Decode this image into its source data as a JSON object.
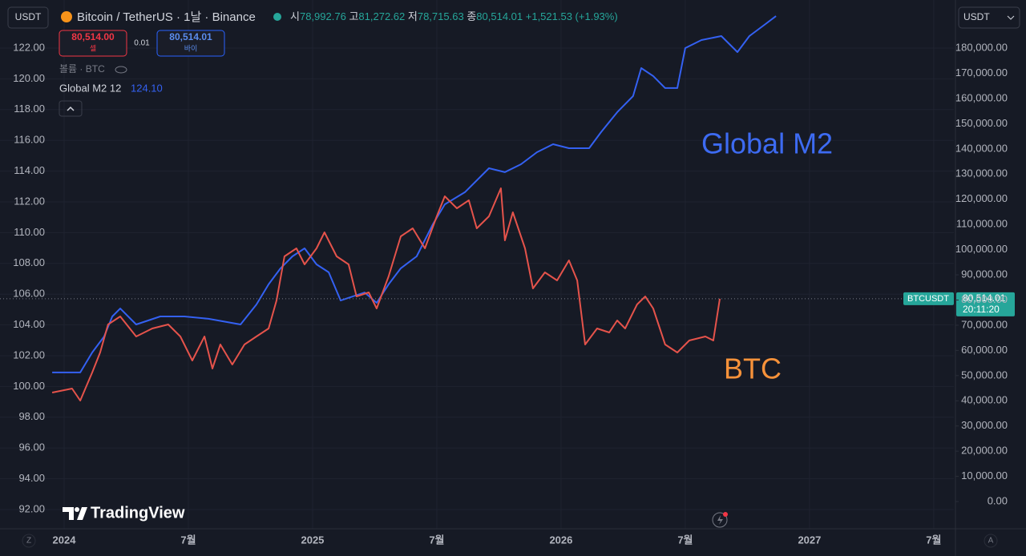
{
  "header": {
    "symbol_currency": "USDT",
    "title": "Bitcoin / TetherUS · 1날 · Binance",
    "ohlc": [
      {
        "label": "시",
        "value": "78,992.76"
      },
      {
        "label": "고",
        "value": "81,272.62"
      },
      {
        "label": "저",
        "value": "78,715.63"
      },
      {
        "label": "종",
        "value": "80,514.01"
      }
    ],
    "change": "+1,521.53 (+1.93%)",
    "sell_price": "80,514.00",
    "sell_label": "셀",
    "spread": "0.01",
    "buy_price": "80,514.01",
    "buy_label": "바이",
    "volume": "볼륨 · BTC",
    "indicator_name": "Global M2 12",
    "indicator_value": "124.10",
    "scale_currency": "USDT",
    "price_tag_symbol": "BTCUSDT",
    "price_tag_price": "80,514.01",
    "price_tag_time": "20:11:20",
    "brand": "TradingView",
    "scale_mode_left": "Z",
    "scale_mode_right": "A"
  },
  "chart_data": {
    "type": "line",
    "grid": true,
    "xlim": [
      2023.742,
      2027.581
    ],
    "xticks": [
      2024,
      {
        "value": 2024.5,
        "label": "7월"
      },
      2025,
      {
        "value": 2025.5,
        "label": "7월"
      },
      2026,
      {
        "value": 2026.5,
        "label": "7월"
      },
      2027,
      {
        "value": 2027.5,
        "label": "7월"
      }
    ],
    "ylim": [
      90.75,
      125.125
    ],
    "yticks": [
      {
        "value": 92,
        "label": "92.00"
      },
      {
        "value": 94,
        "label": "94.00"
      },
      {
        "value": 96,
        "label": "96.00"
      },
      {
        "value": 98,
        "label": "98.00"
      },
      {
        "value": 100,
        "label": "100.00"
      },
      {
        "value": 102,
        "label": "102.00"
      },
      {
        "value": 104,
        "label": "104.00"
      },
      {
        "value": 106,
        "label": "106.00"
      },
      {
        "value": 108,
        "label": "108.00"
      },
      {
        "value": 110,
        "label": "110.00"
      },
      {
        "value": 112,
        "label": "112.00"
      },
      {
        "value": 114,
        "label": "114.00"
      },
      {
        "value": 116,
        "label": "116.00"
      },
      {
        "value": 118,
        "label": "118.00"
      },
      {
        "value": 120,
        "label": "120.00"
      },
      {
        "value": 122,
        "label": "122.00"
      }
    ],
    "y2lim": [
      -10800,
      199100
    ],
    "y2ticks": [
      {
        "value": 0,
        "label": "0.00"
      },
      {
        "value": 10000,
        "label": "10,000.00"
      },
      {
        "value": 20000,
        "label": "20,000.00"
      },
      {
        "value": 30000,
        "label": "30,000.00"
      },
      {
        "value": 40000,
        "label": "40,000.00"
      },
      {
        "value": 50000,
        "label": "50,000.00"
      },
      {
        "value": 60000,
        "label": "60,000.00"
      },
      {
        "value": 70000,
        "label": "70,000.00"
      },
      {
        "value": 80000,
        "label": "80,000.00"
      },
      {
        "value": 90000,
        "label": "90,000.00"
      },
      {
        "value": 100000,
        "label": "100,000.00"
      },
      {
        "value": 110000,
        "label": "110,000.00"
      },
      {
        "value": 120000,
        "label": "120,000.00"
      },
      {
        "value": 130000,
        "label": "130,000.00"
      },
      {
        "value": 140000,
        "label": "140,000.00"
      },
      {
        "value": 150000,
        "label": "150,000.00"
      },
      {
        "value": 160000,
        "label": "160,000.00"
      },
      {
        "value": 170000,
        "label": "170,000.00"
      },
      {
        "value": 180000,
        "label": "180,000.00"
      }
    ],
    "series": [
      {
        "name": "Global M2",
        "color": "#3461f2",
        "label_color": "#3d6bf2",
        "axis": "y",
        "x": [
          2023.952,
          2024.065,
          2024.113,
          2024.161,
          2024.194,
          2024.226,
          2024.29,
          2024.387,
          2024.484,
          2024.581,
          2024.71,
          2024.774,
          2024.823,
          2024.871,
          2024.919,
          2024.968,
          2025.016,
          2025.065,
          2025.113,
          2025.161,
          2025.21,
          2025.258,
          2025.306,
          2025.355,
          2025.419,
          2025.484,
          2025.532,
          2025.613,
          2025.71,
          2025.774,
          2025.839,
          2025.903,
          2025.968,
          2026.032,
          2026.113,
          2026.161,
          2026.226,
          2026.29,
          2026.323,
          2026.371,
          2026.419,
          2026.468,
          2026.5,
          2026.565,
          2026.645,
          2026.71,
          2026.758,
          2026.823,
          2026.865
        ],
        "values": [
          100.91,
          100.91,
          102.21,
          103.25,
          104.55,
          105.07,
          104.03,
          104.55,
          104.55,
          104.4,
          104.03,
          105.33,
          106.64,
          107.68,
          108.46,
          108.98,
          107.94,
          107.42,
          105.59,
          105.85,
          106.11,
          105.44,
          106.64,
          107.68,
          108.46,
          110.54,
          111.84,
          112.63,
          114.19,
          113.93,
          114.45,
          115.23,
          115.75,
          115.49,
          115.49,
          116.53,
          117.83,
          118.88,
          120.7,
          120.18,
          119.4,
          119.4,
          122,
          122.52,
          122.78,
          121.74,
          122.78,
          123.56,
          124.08
        ]
      },
      {
        "name": "BTC",
        "color": "#e5534b",
        "label_color": "#f7923a",
        "axis": "y2",
        "x": [
          2023.952,
          2024.032,
          2024.065,
          2024.113,
          2024.145,
          2024.177,
          2024.226,
          2024.29,
          2024.355,
          2024.419,
          2024.468,
          2024.516,
          2024.565,
          2024.597,
          2024.629,
          2024.677,
          2024.726,
          2024.774,
          2024.823,
          2024.855,
          2024.887,
          2024.935,
          2024.968,
          2025.016,
          2025.048,
          2025.097,
          2025.145,
          2025.177,
          2025.226,
          2025.258,
          2025.306,
          2025.355,
          2025.403,
          2025.452,
          2025.5,
          2025.532,
          2025.581,
          2025.629,
          2025.661,
          2025.71,
          2025.758,
          2025.774,
          2025.806,
          2025.855,
          2025.887,
          2025.935,
          2025.984,
          2026.032,
          2026.065,
          2026.097,
          2026.145,
          2026.194,
          2026.226,
          2026.258,
          2026.306,
          2026.339,
          2026.371,
          2026.419,
          2026.468,
          2026.516,
          2026.581,
          2026.613,
          2026.639
        ],
        "values": [
          43260,
          44850,
          40080,
          51210,
          59160,
          70290,
          73470,
          65520,
          68700,
          70290,
          65520,
          55980,
          65520,
          52800,
          62340,
          54390,
          62340,
          65520,
          68700,
          79830,
          97320,
          100500,
          94140,
          100500,
          106860,
          97320,
          94140,
          81420,
          83010,
          76650,
          89370,
          105270,
          108450,
          100500,
          113220,
          121170,
          116400,
          119580,
          108450,
          113220,
          124350,
          103680,
          114810,
          100500,
          84600,
          90960,
          87780,
          95730,
          87780,
          62340,
          68700,
          67110,
          71880,
          68700,
          78240,
          81420,
          76650,
          62340,
          59160,
          63930,
          65520,
          63930,
          80514.01
        ]
      }
    ]
  }
}
